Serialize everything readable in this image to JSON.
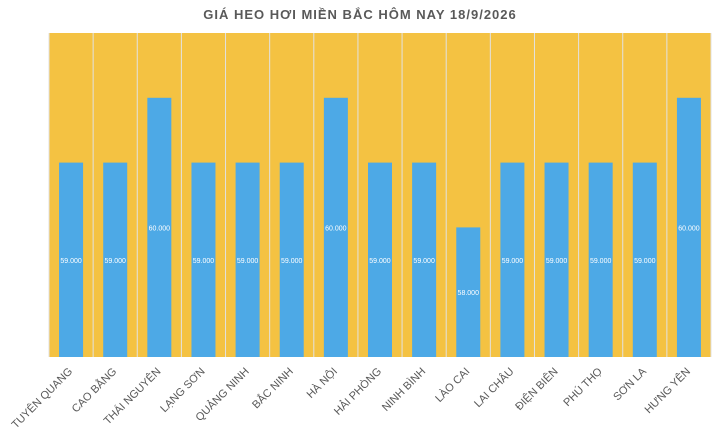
{
  "chart_data": {
    "type": "bar",
    "title": "GIÁ HEO HƠI MIỀN BẮC HÔM NAY 18/9/2026",
    "xlabel": "",
    "ylabel": "",
    "categories": [
      "TUYÊN QUANG",
      "CAO BẰNG",
      "THÁI NGUYÊN",
      "LẠNG SƠN",
      "QUẢNG NINH",
      "BẮC NINH",
      "HÀ NỘI",
      "HẢI PHÒNG",
      "NINH BÌNH",
      "LÀO CAI",
      "LAI CHÂU",
      "ĐIỆN BIÊN",
      "PHÚ THỌ",
      "SƠN LA",
      "HƯNG YÊN"
    ],
    "values": [
      59000,
      59000,
      60000,
      59000,
      59000,
      59000,
      60000,
      59000,
      59000,
      58000,
      59000,
      59000,
      59000,
      59000,
      60000
    ],
    "value_labels": [
      "59.000",
      "59.000",
      "60.000",
      "59.000",
      "59.000",
      "59.000",
      "60.000",
      "59.000",
      "59.000",
      "58.000",
      "59.000",
      "59.000",
      "59.000",
      "59.000",
      "60.000"
    ],
    "ylim": [
      56000,
      61000
    ],
    "grid": false,
    "legend": "none",
    "colors": {
      "plot_background": "#F4C242",
      "bar": "#4DA9E6",
      "separator": "#E2E2E2",
      "axis_text": "#595959",
      "value_label": "#FFFFFF"
    }
  }
}
